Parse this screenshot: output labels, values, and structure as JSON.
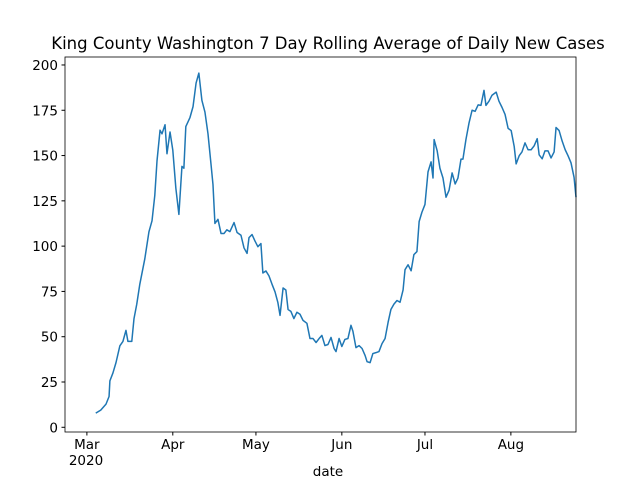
{
  "chart_data": {
    "type": "line",
    "title": "King County Washington 7 Day Rolling Average of Daily New Cases",
    "x_label": "date",
    "x_year_label": "2020",
    "color": "#1f77b4",
    "x": [
      3.2,
      5,
      6.9,
      8,
      8.3,
      9.4,
      10.5,
      11.9,
      13,
      14.1,
      14.8,
      16.2,
      17,
      18,
      19.1,
      20.9,
      22.4,
      23.5,
      24.5,
      25.3,
      26.4,
      27.1,
      28.2,
      28.9,
      30,
      31,
      32.1,
      33.2,
      34.3,
      35,
      35.7,
      37.2,
      38.3,
      39.4,
      40.4,
      41.5,
      42.6,
      43.7,
      44.8,
      45.5,
      46.2,
      47.3,
      48.4,
      49.5,
      50.5,
      51.6,
      53.1,
      54.2,
      55.6,
      56.7,
      57.8,
      58.5,
      59.6,
      60.6,
      61.7,
      62.8,
      63.5,
      64.6,
      65.7,
      66.8,
      67.9,
      68.9,
      69.7,
      70.8,
      71.8,
      72.6,
      73.6,
      74.7,
      75.8,
      76.9,
      78,
      79.4,
      80.5,
      81.6,
      82.7,
      83.8,
      84.8,
      85.9,
      87,
      88.1,
      89.2,
      89.9,
      91,
      92,
      93.1,
      94.2,
      95.3,
      96,
      97.1,
      98.2,
      99.3,
      100.4,
      101.1,
      102.2,
      103.2,
      104.3,
      105.4,
      106.5,
      107.6,
      108.7,
      109.7,
      110.8,
      111.9,
      113,
      114.1,
      114.8,
      115.9,
      117,
      118,
      119.1,
      119.9,
      120.9,
      122,
      123.1,
      124.2,
      124.9,
      125.3,
      126.4,
      127.4,
      128.5,
      129.6,
      130.7,
      131.8,
      132.9,
      133.9,
      135,
      135.7,
      136.8,
      137.9,
      139,
      140.1,
      141.2,
      142.2,
      143.3,
      144,
      145.1,
      146.2,
      147.7,
      148.7,
      149.8,
      150.9,
      152,
      153.1,
      154.2,
      154.9,
      156,
      157,
      158.1,
      159.2,
      160.3,
      161.4,
      162.5,
      163.2,
      164.3,
      165.3,
      166.4,
      167.5,
      168.6,
      169.3,
      170.4,
      171.5,
      172.6,
      173.6,
      174.7,
      175.8,
      176.5
    ],
    "values": [
      7.8,
      9.5,
      12.8,
      17,
      25.6,
      30,
      35.7,
      45,
      47.4,
      53.5,
      47.4,
      47.4,
      60,
      68,
      79,
      93,
      108,
      114,
      128,
      147,
      164,
      162,
      167,
      151,
      163,
      153,
      132,
      117.5,
      144,
      143,
      166,
      171,
      177,
      190,
      195.5,
      180.5,
      174,
      162,
      145,
      134,
      112.5,
      114.8,
      107,
      107,
      109,
      108,
      113,
      107.5,
      106,
      99,
      96,
      104.7,
      106.4,
      103,
      99.7,
      101.4,
      85.2,
      86.3,
      83.6,
      79,
      74.7,
      69,
      61.8,
      76.9,
      75.8,
      65,
      64,
      60,
      63.5,
      62.4,
      59,
      57.4,
      49,
      49,
      46.8,
      49,
      50.7,
      45.1,
      45.7,
      49.6,
      43.5,
      41.8,
      49,
      44.6,
      48.5,
      49,
      56.3,
      53,
      44,
      45.1,
      43.5,
      39.6,
      36.2,
      35.7,
      40.7,
      41.2,
      41.8,
      46.2,
      49,
      58,
      65,
      68,
      70,
      69,
      75.8,
      87,
      89.7,
      86.4,
      95.3,
      97,
      113.6,
      118.7,
      123,
      141,
      146.5,
      137.6,
      158.8,
      152.6,
      143,
      137.6,
      127,
      130.9,
      140.4,
      134.3,
      137.6,
      148,
      148,
      159,
      168,
      175,
      174.4,
      178,
      177.7,
      186,
      177.7,
      180,
      183.3,
      185,
      180,
      176.6,
      172.7,
      165,
      163.8,
      155,
      145.4,
      149.9,
      152,
      157,
      153.2,
      153.2,
      155.4,
      159.3,
      150.4,
      148.2,
      152.6,
      152.6,
      148.7,
      152,
      165.5,
      163.8,
      158,
      153.2,
      150,
      146,
      138,
      127
    ],
    "xlim": [
      -7.9,
      176.5
    ],
    "xticks": [
      {
        "value": 0,
        "label": "Mar"
      },
      {
        "value": 31,
        "label": "Apr"
      },
      {
        "value": 61,
        "label": "May"
      },
      {
        "value": 92,
        "label": "Jun"
      },
      {
        "value": 122,
        "label": "Jul"
      },
      {
        "value": 153,
        "label": "Aug"
      }
    ],
    "ylim": [
      -2.6,
      204.4
    ],
    "yticks": [
      0,
      25,
      50,
      75,
      100,
      125,
      150,
      175,
      200
    ]
  }
}
